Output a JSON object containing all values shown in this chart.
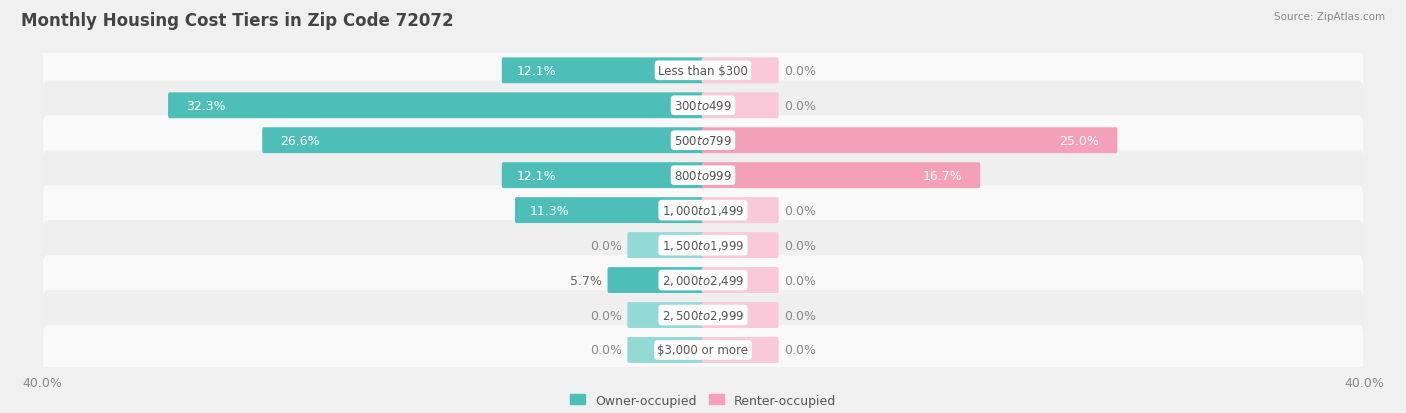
{
  "title": "Monthly Housing Cost Tiers in Zip Code 72072",
  "source": "Source: ZipAtlas.com",
  "categories": [
    "Less than $300",
    "$300 to $499",
    "$500 to $799",
    "$800 to $999",
    "$1,000 to $1,499",
    "$1,500 to $1,999",
    "$2,000 to $2,499",
    "$2,500 to $2,999",
    "$3,000 or more"
  ],
  "owner_values": [
    12.1,
    32.3,
    26.6,
    12.1,
    11.3,
    0.0,
    5.7,
    0.0,
    0.0
  ],
  "renter_values": [
    0.0,
    0.0,
    25.0,
    16.7,
    0.0,
    0.0,
    0.0,
    0.0,
    0.0
  ],
  "owner_color": "#4DBFB8",
  "renter_color": "#F4A0BB",
  "owner_stub_color": "#93D9D6",
  "renter_stub_color": "#F9C8D9",
  "owner_label": "Owner-occupied",
  "renter_label": "Renter-occupied",
  "axis_max": 40.0,
  "stub_size": 4.5,
  "bg_color": "#f0f0f0",
  "row_colors": [
    "#f9f9f9",
    "#efefef"
  ],
  "title_fontsize": 12,
  "value_fontsize": 9,
  "cat_fontsize": 8.5,
  "tick_fontsize": 9,
  "legend_fontsize": 9
}
